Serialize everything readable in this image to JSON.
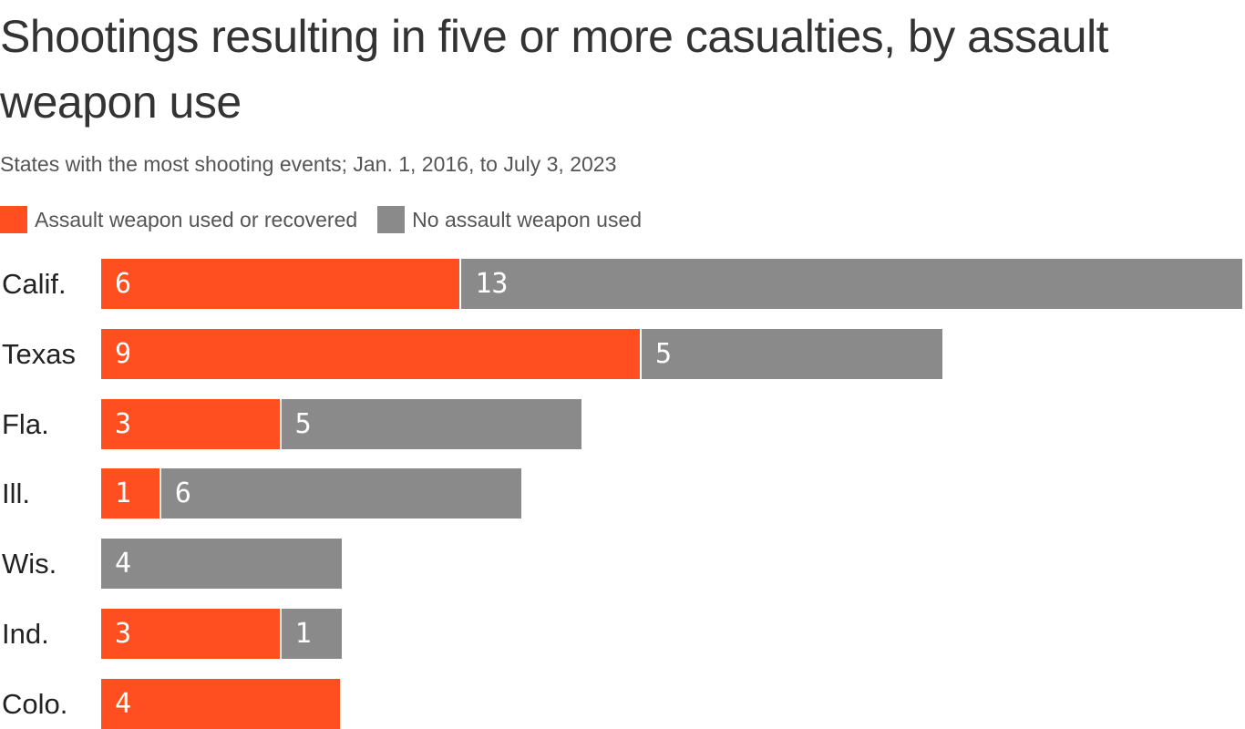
{
  "chart_data": {
    "type": "bar",
    "orientation": "horizontal",
    "stacked": true,
    "title": "Shootings resulting in five or more casualties, by assault weapon use",
    "subtitle": "States with the most shooting events; Jan. 1, 2016, to July 3, 2023",
    "categories": [
      "Calif.",
      "Texas",
      "Fla.",
      "Ill.",
      "Wis.",
      "Ind.",
      "Colo."
    ],
    "series": [
      {
        "name": "Assault weapon used or recovered",
        "color": "#FF4E1F",
        "values": [
          6,
          9,
          3,
          1,
          0,
          3,
          4
        ]
      },
      {
        "name": "No assault weapon used",
        "color": "#8A8A8A",
        "values": [
          13,
          5,
          5,
          6,
          4,
          1,
          0
        ]
      }
    ],
    "xlim": [
      0,
      19
    ],
    "grid": false,
    "legend_position": "top-left",
    "data_labels": true
  }
}
